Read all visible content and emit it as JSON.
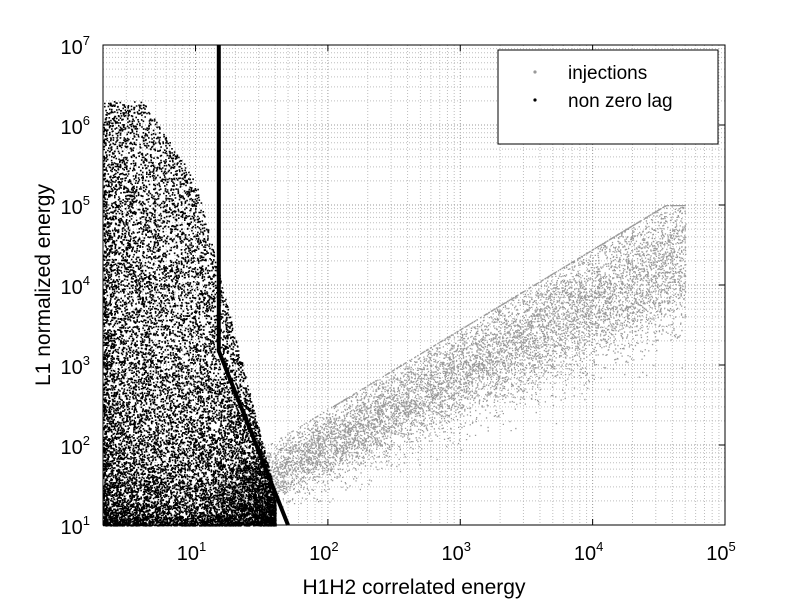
{
  "chart_data": {
    "type": "scatter",
    "xscale": "log",
    "yscale": "log",
    "xlim": [
      2,
      100000
    ],
    "ylim": [
      10,
      10000000
    ],
    "xlabel": "H1H2 correlated energy",
    "ylabel": "L1 normalized energy",
    "xticks": [
      {
        "base": "10",
        "exp": "1",
        "value": 10
      },
      {
        "base": "10",
        "exp": "2",
        "value": 100
      },
      {
        "base": "10",
        "exp": "3",
        "value": 1000
      },
      {
        "base": "10",
        "exp": "4",
        "value": 10000
      },
      {
        "base": "10",
        "exp": "5",
        "value": 100000
      }
    ],
    "yticks": [
      {
        "base": "10",
        "exp": "1",
        "value": 10
      },
      {
        "base": "10",
        "exp": "2",
        "value": 100
      },
      {
        "base": "10",
        "exp": "3",
        "value": 1000
      },
      {
        "base": "10",
        "exp": "4",
        "value": 10000
      },
      {
        "base": "10",
        "exp": "5",
        "value": 100000
      },
      {
        "base": "10",
        "exp": "6",
        "value": 1000000
      },
      {
        "base": "10",
        "exp": "7",
        "value": 10000000
      }
    ],
    "grid": "dotted, major and minor",
    "legend_position": "top-right",
    "series": [
      {
        "name": "injections",
        "color": "#999999",
        "marker": "dot",
        "region_description": "dense cloud from about x=15 to x=60000, y=10 to y=100000, rising with x"
      },
      {
        "name": "non zero lag",
        "color": "#000000",
        "marker": "dot",
        "region_description": "dense cloud at x below about 40, y=10 to about y=2000000"
      }
    ],
    "threshold_line": {
      "color": "#000000",
      "points": [
        [
          15,
          10000000
        ],
        [
          15,
          1500
        ],
        [
          50,
          10
        ]
      ]
    }
  }
}
